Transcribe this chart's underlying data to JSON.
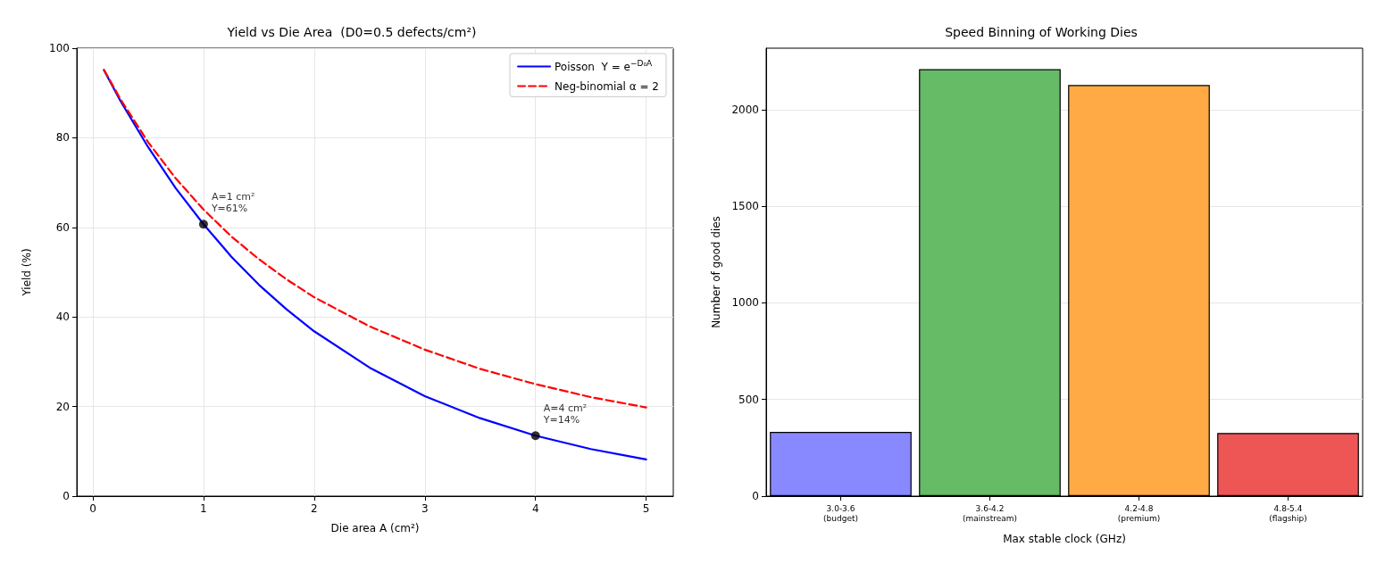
{
  "chart_data": [
    {
      "type": "line",
      "title": "Yield vs Die Area  (D0=0.5 defects/cm²)",
      "xlabel": "Die area A (cm²)",
      "ylabel": "Yield (%)",
      "xlim": [
        -0.145,
        5.245
      ],
      "xticks": [
        0,
        1,
        2,
        3,
        4,
        5
      ],
      "ylim": [
        0,
        100
      ],
      "yticks": [
        0,
        20,
        40,
        60,
        80,
        100
      ],
      "grid": true,
      "legend": "top right",
      "series": [
        {
          "name": "Poisson  Y = e$^{−D₀A}$",
          "color": "#0000ff",
          "line_style": "solid",
          "marker": "none",
          "x": [
            0.1,
            0.25,
            0.5,
            0.75,
            1,
            1.25,
            1.5,
            1.75,
            2,
            2.5,
            3,
            3.5,
            4,
            4.5,
            5
          ],
          "values": [
            95.1,
            88.2,
            77.9,
            68.7,
            60.7,
            53.5,
            47.2,
            41.7,
            36.8,
            28.7,
            22.3,
            17.4,
            13.5,
            10.5,
            8.2
          ]
        },
        {
          "name": "Neg-binomial α = 2",
          "color": "#ff0000",
          "line_style": "dashed",
          "marker": "none",
          "x": [
            0.1,
            0.25,
            0.5,
            0.75,
            1,
            1.25,
            1.5,
            1.75,
            2,
            2.5,
            3,
            3.5,
            4,
            4.5,
            5
          ],
          "values": [
            95.2,
            88.6,
            79.0,
            70.9,
            64.0,
            58.0,
            52.9,
            48.4,
            44.4,
            37.9,
            32.7,
            28.4,
            25.0,
            22.1,
            19.8
          ]
        },
        {
          "type": "scatter",
          "color": "#000000",
          "marker": "circle",
          "x": [
            1,
            4
          ],
          "values": [
            60.7,
            13.5
          ]
        }
      ],
      "annotations": [
        {
          "text": "A=1 cm²\nY=61%",
          "x": 1,
          "y": 60.7
        },
        {
          "text": "A=4 cm²\nY=14%",
          "x": 4,
          "y": 13.5
        }
      ]
    },
    {
      "type": "bar",
      "title": "Speed Binning of Working Dies",
      "xlabel": "Max stable clock (GHz)",
      "ylabel": "Number of good dies",
      "categories": [
        "3.0-3.6\n(budget)",
        "3.6-4.2\n(mainstream)",
        "4.2-4.8\n(premium)",
        "4.8-5.4\n(flagship)"
      ],
      "values": [
        332,
        2209,
        2127,
        327
      ],
      "colors": [
        "#8888ff",
        "#66bb66",
        "#ffaa44",
        "#ee5555"
      ],
      "ylim": [
        0,
        2318
      ],
      "yticks": [
        0,
        500,
        1000,
        1500,
        2000
      ],
      "grid": "y"
    }
  ]
}
